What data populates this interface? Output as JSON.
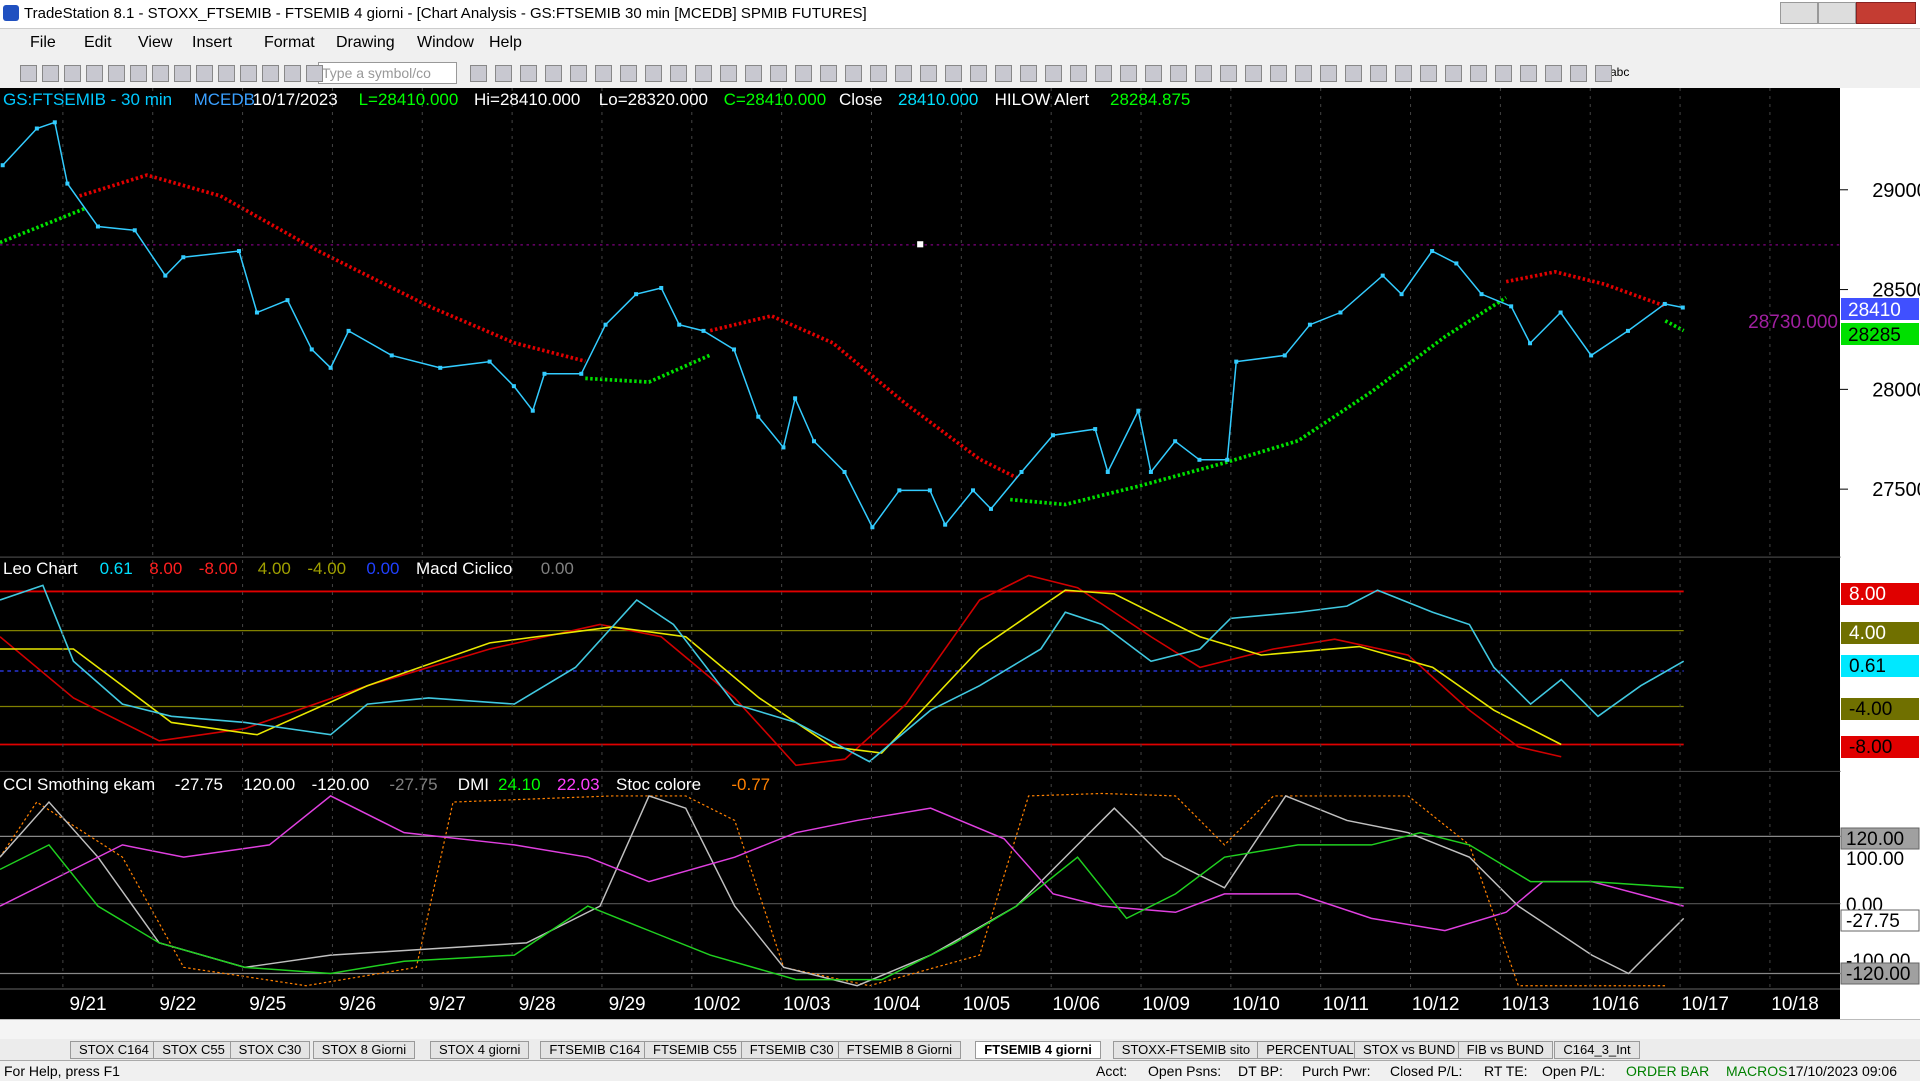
{
  "window": {
    "title": "TradeStation 8.1 - STOXX_FTSEMIB - FTSEMIB  4 giorni - [Chart Analysis - GS:FTSEMIB  30 min  [MCEDB] SPMIB FUTURES]"
  },
  "menu": [
    "File",
    "Edit",
    "View",
    "Insert",
    "Format",
    "Drawing",
    "Window",
    "Help"
  ],
  "toolbar": {
    "symbol_box": "Type a symbol/co",
    "text_tool": "abc"
  },
  "price_panel": {
    "header": [
      {
        "text": "GS:FTSEMIB - 30 min",
        "color": "#00c8ff"
      },
      {
        "text": "MCEDB",
        "color": "#3aa0ff"
      },
      {
        "text": "10/17/2023",
        "color": "#ffffff"
      },
      {
        "text": "L=28410.000",
        "color": "#00ff00"
      },
      {
        "text": "Hi=28410.000",
        "color": "#ffffff"
      },
      {
        "text": "Lo=28320.000",
        "color": "#ffffff"
      },
      {
        "text": "C=28410.000",
        "color": "#00ff00"
      },
      {
        "text": "Close",
        "color": "#ffffff"
      },
      {
        "text": "28410.000",
        "color": "#00e0ff"
      },
      {
        "text": "HILOW Alert",
        "color": "#ffffff"
      },
      {
        "text": "28284.875",
        "color": "#00ff00"
      }
    ],
    "ylim": [
      27160,
      29510
    ],
    "yticks": [
      27500,
      28000,
      28500,
      29000
    ],
    "xlim": [
      -0.98,
      19.5
    ],
    "level_label": "28730.000",
    "last_label": "28410",
    "alert_label": "28285",
    "color": "#33ccff",
    "x": [
      -0.95,
      -0.57,
      -0.37,
      -0.23,
      0.11,
      0.52,
      0.86,
      1.06,
      1.68,
      1.88,
      2.22,
      2.49,
      2.7,
      2.9,
      3.38,
      3.92,
      4.47,
      4.74,
      4.95,
      5.08,
      5.49,
      5.76,
      6.1,
      6.38,
      6.58,
      6.85,
      7.19,
      7.46,
      7.74,
      7.87,
      8.08,
      8.42,
      8.73,
      9.03,
      9.37,
      9.54,
      9.85,
      10.05,
      10.39,
      10.74,
      11.21,
      11.35,
      11.69,
      11.83,
      12.1,
      12.37,
      12.68,
      12.78,
      13.32,
      13.6,
      13.94,
      14.41,
      14.62,
      14.96,
      15.23,
      15.51,
      15.84,
      16.05,
      16.39,
      16.73,
      17.14,
      17.55,
      17.75
    ],
    "values": [
      29123,
      29307,
      29338,
      29031,
      28816,
      28797,
      28570,
      28662,
      28693,
      28385,
      28447,
      28200,
      28108,
      28293,
      28170,
      28108,
      28139,
      28016,
      27893,
      28078,
      28078,
      28324,
      28477,
      28508,
      28324,
      28293,
      28200,
      27863,
      27709,
      27955,
      27740,
      27586,
      27309,
      27494,
      27494,
      27322,
      27494,
      27401,
      27586,
      27770,
      27801,
      27586,
      27893,
      27586,
      27740,
      27647,
      27647,
      28139,
      28170,
      28324,
      28385,
      28570,
      28477,
      28693,
      28631,
      28477,
      28416,
      28231,
      28385,
      28170,
      28293,
      28428,
      28410
    ]
  },
  "leo_panel": {
    "header": [
      {
        "text": "Leo Chart",
        "color": "#ffffff"
      },
      {
        "text": "0.61",
        "color": "#00e0ff"
      },
      {
        "text": "8.00",
        "color": "#ff2020"
      },
      {
        "text": "-8.00",
        "color": "#ff2020"
      },
      {
        "text": "4.00",
        "color": "#a0a000"
      },
      {
        "text": "-4.00",
        "color": "#a0a000"
      },
      {
        "text": "0.00",
        "color": "#2040ff"
      },
      {
        "text": "Macd Ciclico",
        "color": "#ffffff"
      },
      {
        "text": "0.00",
        "color": "#808080"
      }
    ],
    "axis_labels": [
      {
        "text": "8.00",
        "color": "#e00000",
        "fg": "#ffffff"
      },
      {
        "text": "4.00",
        "color": "#707000",
        "fg": "#ffffff"
      },
      {
        "text": "0.61",
        "color": "#00e8ff",
        "fg": "#000000"
      },
      {
        "text": "-4.00",
        "color": "#707000",
        "fg": "#000000"
      },
      {
        "text": "-8.00",
        "color": "#e00000",
        "fg": "#000000"
      }
    ]
  },
  "cci_panel": {
    "header": [
      {
        "text": "CCI Smothing ekam",
        "color": "#ffffff"
      },
      {
        "text": "-27.75",
        "color": "#ffffff"
      },
      {
        "text": "120.00",
        "color": "#ffffff"
      },
      {
        "text": "-120.00",
        "color": "#ffffff"
      },
      {
        "text": "-27.75",
        "color": "#808080"
      },
      {
        "text": "DMI",
        "color": "#ffffff"
      },
      {
        "text": "24.10",
        "color": "#00ff00"
      },
      {
        "text": "22.03",
        "color": "#ff40ff"
      },
      {
        "text": "Stoc colore",
        "color": "#ffffff"
      },
      {
        "text": "-0.77",
        "color": "#ff8000"
      }
    ],
    "axis_labels": [
      "120.00",
      "100.00",
      "0.00",
      "-27.75",
      "-100.00",
      "-120.00"
    ]
  },
  "dates": [
    "9/21",
    "9/22",
    "9/25",
    "9/26",
    "9/27",
    "9/28",
    "9/29",
    "10/02",
    "10/03",
    "10/04",
    "10/05",
    "10/06",
    "10/09",
    "10/10",
    "10/11",
    "10/12",
    "10/13",
    "10/16",
    "10/17",
    "10/18"
  ],
  "tabs": [
    "STOX C164",
    "STOX C55",
    "STOX  C30",
    "STOX  8 Giorni",
    "STOX 4 giorni",
    "FTSEMIB C164",
    "FTSEMIB C55",
    "FTSEMIB C30",
    "FTSEMIB  8 Giorni",
    "FTSEMIB  4 giorni",
    "STOXX-FTSEMIB sito",
    "PERCENTUALE",
    "STOX vs BUND",
    "FIB vs BUND",
    "C164_3_Int"
  ],
  "active_tab": 9,
  "status": [
    "For Help, press F1",
    "Acct:",
    "Open Psns:",
    "DT BP:",
    "Purch Pwr:",
    "Closed P/L:",
    "RT TE:",
    "Open P/L:",
    "ORDER BAR",
    "MACROS",
    "17/10/2023 09:06"
  ]
}
